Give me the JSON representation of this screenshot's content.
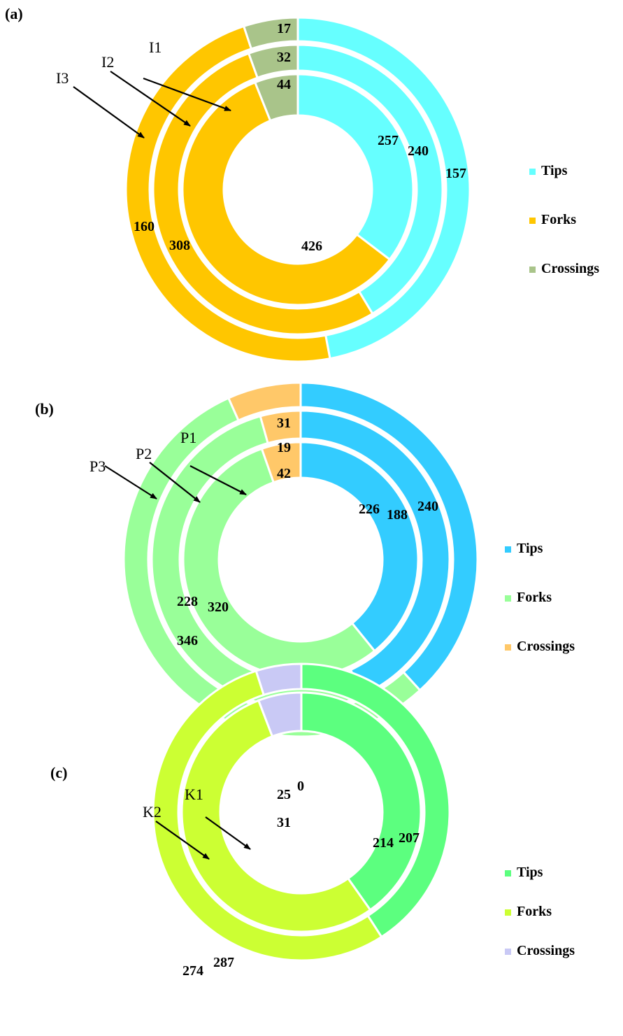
{
  "chart_data": [
    {
      "type": "pie",
      "subtype": "nested-donut",
      "panel": "(a)",
      "categories": [
        "Tips",
        "Forks",
        "Crossings"
      ],
      "colors": [
        "#66FFFF",
        "#FFC600",
        "#A9C48A"
      ],
      "legend_position": "right",
      "series": [
        {
          "name": "I1",
          "values": [
            257,
            426,
            44
          ]
        },
        {
          "name": "I2",
          "values": [
            240,
            308,
            32
          ]
        },
        {
          "name": "I3",
          "values": [
            157,
            160,
            17
          ]
        }
      ]
    },
    {
      "type": "pie",
      "subtype": "nested-donut",
      "panel": "(b)",
      "categories": [
        "Tips",
        "Forks",
        "Crossings"
      ],
      "colors": [
        "#33CCFF",
        "#99FF99",
        "#FFC869"
      ],
      "legend_position": "right",
      "series": [
        {
          "name": "P1",
          "values": [
            226,
            320,
            31
          ]
        },
        {
          "name": "P2",
          "values": [
            188,
            228,
            19
          ]
        },
        {
          "name": "P3",
          "values": [
            240,
            346,
            42
          ]
        }
      ]
    },
    {
      "type": "pie",
      "subtype": "nested-donut",
      "panel": "(c)",
      "categories": [
        "Tips",
        "Forks",
        "Crossings"
      ],
      "colors": [
        "#5CFF7F",
        "#CCFF33",
        "#C9C9F5"
      ],
      "legend_position": "right",
      "series": [
        {
          "name": "K1",
          "values": [
            214,
            287,
            31
          ]
        },
        {
          "name": "K2",
          "values": [
            207,
            274,
            25
          ]
        }
      ],
      "annotations": [
        "0"
      ]
    }
  ]
}
